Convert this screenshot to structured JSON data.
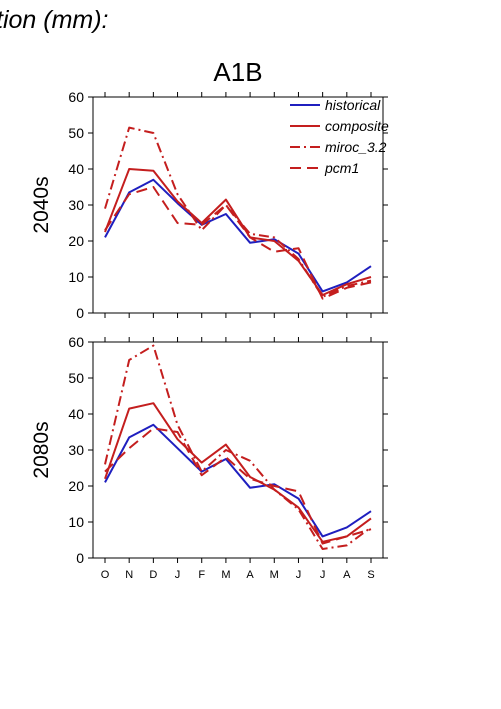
{
  "page": {
    "top_text": "tion (mm):"
  },
  "chart_data": [
    {
      "type": "line",
      "title": "A1B",
      "ylabel": "2040s",
      "ylim": [
        0,
        60
      ],
      "yticks": [
        0,
        10,
        20,
        30,
        40,
        50,
        60
      ],
      "categories": [
        "O",
        "N",
        "D",
        "J",
        "F",
        "M",
        "A",
        "M",
        "J",
        "J",
        "A",
        "S"
      ],
      "show_xtick_labels": false,
      "legend": "top-right",
      "series": [
        {
          "name": "historical",
          "color": "#1f1fbf",
          "dash": "solid",
          "values": [
            21,
            33.5,
            37,
            30.5,
            24.5,
            27.5,
            19.5,
            20.5,
            16.5,
            6,
            8.5,
            13
          ]
        },
        {
          "name": "composite",
          "color": "#c41e1e",
          "dash": "solid",
          "values": [
            22.5,
            40,
            39.5,
            31,
            25,
            31.5,
            21,
            20,
            14.5,
            5,
            8,
            10
          ]
        },
        {
          "name": "miroc_3.2",
          "color": "#c41e1e",
          "dash": "dashdot",
          "values": [
            29,
            51.5,
            50,
            33,
            23,
            30,
            22,
            21,
            15,
            4.5,
            7.5,
            9
          ]
        },
        {
          "name": "pcm1",
          "color": "#c41e1e",
          "dash": "dash",
          "values": [
            23,
            33,
            35,
            25,
            24.5,
            30,
            21,
            17,
            18,
            4,
            7,
            8.5
          ]
        }
      ]
    },
    {
      "type": "line",
      "title": "",
      "ylabel": "2080s",
      "ylim": [
        0,
        60
      ],
      "yticks": [
        0,
        10,
        20,
        30,
        40,
        50,
        60
      ],
      "categories": [
        "O",
        "N",
        "D",
        "J",
        "F",
        "M",
        "A",
        "M",
        "J",
        "J",
        "A",
        "S"
      ],
      "show_xtick_labels": true,
      "series": [
        {
          "color": "#1f1fbf",
          "dash": "solid",
          "values": [
            21,
            33.5,
            37,
            30.5,
            24,
            27.5,
            19.5,
            20.5,
            16.5,
            6,
            8.5,
            13
          ]
        },
        {
          "color": "#c41e1e",
          "dash": "solid",
          "values": [
            22,
            41.5,
            43,
            33,
            26.5,
            31.5,
            22.5,
            19,
            14,
            4.5,
            6,
            11
          ]
        },
        {
          "color": "#c41e1e",
          "dash": "dashdot",
          "values": [
            26,
            55,
            59,
            37,
            24,
            30,
            27,
            19,
            13.5,
            2.5,
            3.5,
            8.5
          ]
        },
        {
          "color": "#c41e1e",
          "dash": "dash",
          "values": [
            24,
            30.5,
            36,
            35,
            23,
            28,
            22,
            20,
            18.5,
            4,
            6,
            8
          ]
        }
      ]
    }
  ]
}
